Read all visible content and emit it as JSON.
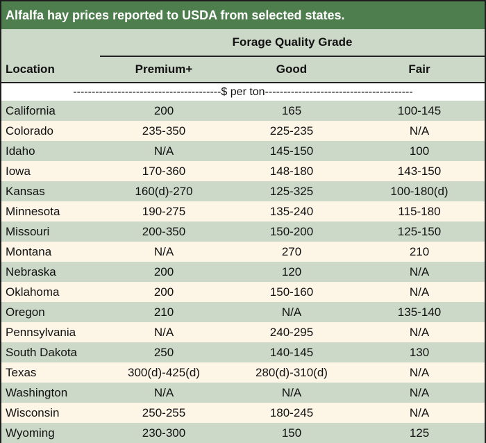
{
  "title": "Alfalfa hay prices reported to USDA from selected states.",
  "header": {
    "group_label": "Forage Quality Grade",
    "location_label": "Location",
    "columns": [
      "Premium+",
      "Good",
      "Fair"
    ]
  },
  "units_text": "----------------------------------------$ per ton----------------------------------------",
  "rows": [
    {
      "location": "California",
      "premium": "200",
      "good": "165",
      "fair": "100-145"
    },
    {
      "location": "Colorado",
      "premium": "235-350",
      "good": "225-235",
      "fair": "N/A"
    },
    {
      "location": "Idaho",
      "premium": "N/A",
      "good": "145-150",
      "fair": "100"
    },
    {
      "location": "Iowa",
      "premium": "170-360",
      "good": "148-180",
      "fair": "143-150"
    },
    {
      "location": "Kansas",
      "premium": "160(d)-270",
      "good": "125-325",
      "fair": "100-180(d)"
    },
    {
      "location": "Minnesota",
      "premium": "190-275",
      "good": "135-240",
      "fair": "115-180"
    },
    {
      "location": "Missouri",
      "premium": "200-350",
      "good": "150-200",
      "fair": "125-150"
    },
    {
      "location": "Montana",
      "premium": "N/A",
      "good": "270",
      "fair": "210"
    },
    {
      "location": "Nebraska",
      "premium": "200",
      "good": "120",
      "fair": "N/A"
    },
    {
      "location": "Oklahoma",
      "premium": "200",
      "good": "150-160",
      "fair": "N/A"
    },
    {
      "location": "Oregon",
      "premium": "210",
      "good": "N/A",
      "fair": "135-140"
    },
    {
      "location": "Pennsylvania",
      "premium": "N/A",
      "good": "240-295",
      "fair": "N/A"
    },
    {
      "location": "South Dakota",
      "premium": "250",
      "good": "140-145",
      "fair": "130"
    },
    {
      "location": "Texas",
      "premium": "300(d)-425(d)",
      "good": "280(d)-310(d)",
      "fair": "N/A"
    },
    {
      "location": "Washington",
      "premium": "N/A",
      "good": "N/A",
      "fair": "N/A"
    },
    {
      "location": "Wisconsin",
      "premium": "250-255",
      "good": "180-245",
      "fair": "N/A"
    },
    {
      "location": "Wyoming",
      "premium": "230-300",
      "good": "150",
      "fair": "125"
    }
  ]
}
